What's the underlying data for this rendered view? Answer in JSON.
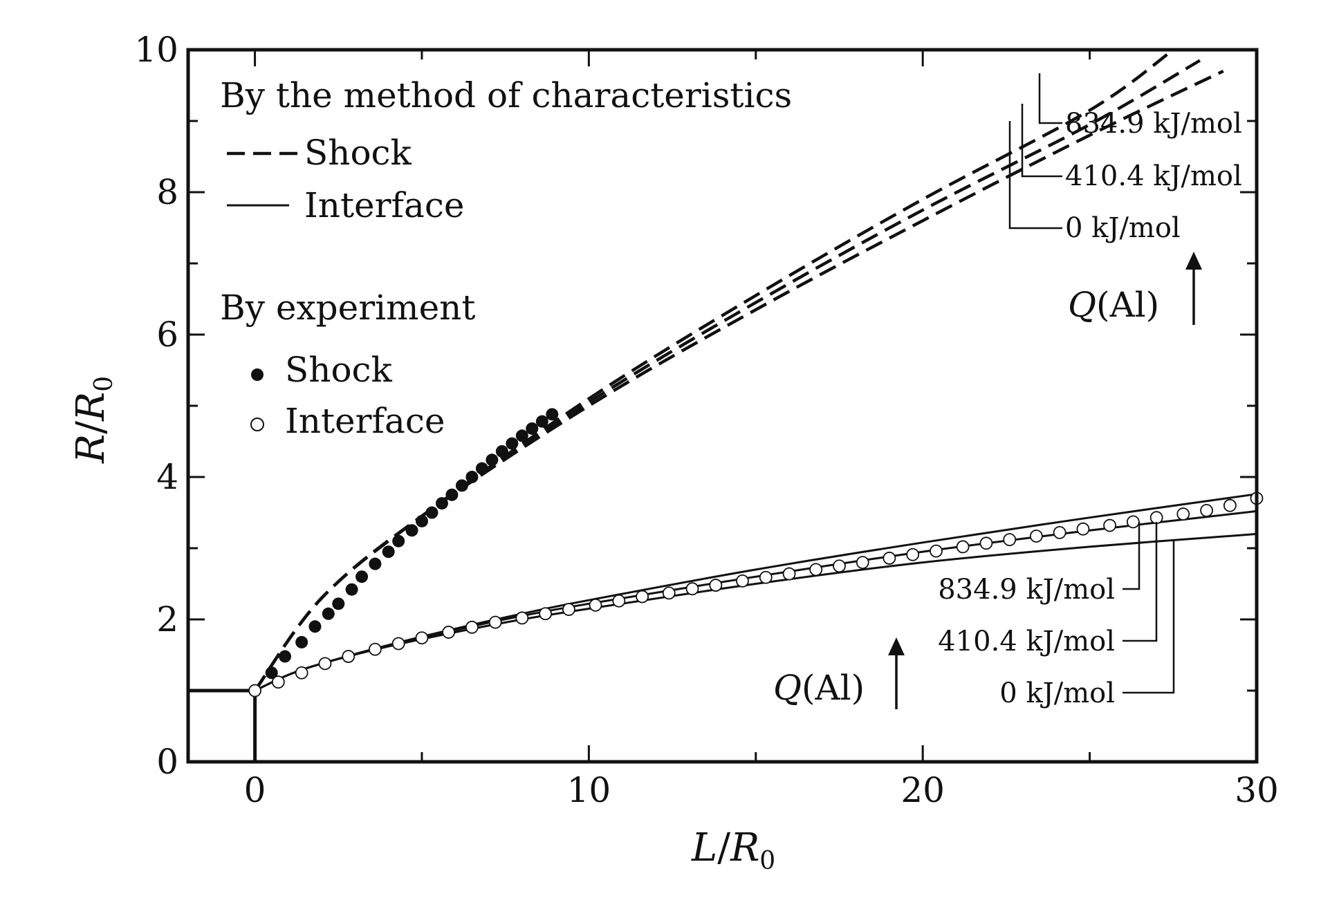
{
  "chart_data": {
    "type": "line",
    "xlabel": "L/R₀",
    "ylabel": "R/R₀",
    "xlim": [
      -2,
      30
    ],
    "ylim": [
      0,
      10
    ],
    "x_ticks": [
      0,
      10,
      20,
      30
    ],
    "y_ticks": [
      0,
      2,
      4,
      6,
      8,
      10
    ],
    "grid": false,
    "axis_labels": {
      "x_main": "L",
      "x_sub": "R",
      "x_subscript": "0",
      "y_main": "R",
      "y_sub": "R",
      "y_subscript": "0"
    },
    "legend": {
      "location": "top-left",
      "header_characteristics": "By  the method of characteristics",
      "shock_label": "Shock",
      "interface_label": "Interface",
      "header_experiment": "By experiment",
      "exp_shock_label": "Shock",
      "exp_interface_label": "Interface"
    },
    "initial_boundary": {
      "x": [
        -2,
        0,
        0
      ],
      "y": [
        1,
        1,
        0
      ]
    },
    "series_shock_characteristics": [
      {
        "q": "0 kJ/mol",
        "x": [
          0,
          2,
          5,
          10,
          15,
          20,
          25,
          29
        ],
        "y": [
          1,
          2.3,
          3.45,
          5.0,
          6.35,
          7.6,
          8.8,
          9.7
        ]
      },
      {
        "q": "410.4 kJ/mol",
        "x": [
          0,
          2,
          5,
          10,
          15,
          20,
          25,
          28.3
        ],
        "y": [
          1,
          2.3,
          3.45,
          5.05,
          6.45,
          7.75,
          8.95,
          9.85
        ]
      },
      {
        "q": "834.9 kJ/mol",
        "x": [
          0,
          2,
          5,
          10,
          15,
          20,
          25,
          27.5
        ],
        "y": [
          1,
          2.3,
          3.45,
          5.1,
          6.55,
          7.9,
          9.15,
          10.0
        ]
      }
    ],
    "series_interface_characteristics": [
      {
        "q": "0 kJ/mol",
        "x": [
          0,
          1,
          2,
          4,
          6,
          8,
          10,
          15,
          20,
          25,
          30
        ],
        "y": [
          1,
          1.22,
          1.38,
          1.62,
          1.82,
          2.0,
          2.15,
          2.5,
          2.8,
          3.02,
          3.2
        ]
      },
      {
        "q": "410.4 kJ/mol",
        "x": [
          0,
          1,
          2,
          4,
          6,
          8,
          10,
          15,
          20,
          25,
          30
        ],
        "y": [
          1,
          1.22,
          1.38,
          1.63,
          1.85,
          2.05,
          2.22,
          2.6,
          2.95,
          3.25,
          3.52
        ]
      },
      {
        "q": "834.9 kJ/mol",
        "x": [
          0,
          1,
          2,
          4,
          6,
          8,
          10,
          15,
          20,
          25,
          30
        ],
        "y": [
          1,
          1.22,
          1.38,
          1.64,
          1.87,
          2.08,
          2.27,
          2.7,
          3.08,
          3.43,
          3.76
        ]
      }
    ],
    "experiment_shock": {
      "x": [
        0,
        0.5,
        0.9,
        1.4,
        1.8,
        2.2,
        2.5,
        2.9,
        3.2,
        3.6,
        4.0,
        4.3,
        4.7,
        5.0,
        5.3,
        5.6,
        5.9,
        6.2,
        6.5,
        6.8,
        7.1,
        7.4,
        7.7,
        8.0,
        8.3,
        8.6,
        8.9
      ],
      "y": [
        1.0,
        1.25,
        1.48,
        1.68,
        1.9,
        2.08,
        2.22,
        2.42,
        2.6,
        2.78,
        2.95,
        3.1,
        3.25,
        3.38,
        3.5,
        3.63,
        3.75,
        3.88,
        4.0,
        4.12,
        4.24,
        4.36,
        4.47,
        4.58,
        4.68,
        4.78,
        4.88
      ]
    },
    "experiment_interface": {
      "x": [
        0,
        0.7,
        1.4,
        2.1,
        2.8,
        3.6,
        4.3,
        5.0,
        5.8,
        6.5,
        7.2,
        8.0,
        8.7,
        9.4,
        10.2,
        10.9,
        11.6,
        12.4,
        13.1,
        13.8,
        14.6,
        15.3,
        16.0,
        16.8,
        17.5,
        18.2,
        19.0,
        19.7,
        20.4,
        21.2,
        21.9,
        22.6,
        23.4,
        24.1,
        24.8,
        25.6,
        26.3,
        27.0,
        27.8,
        28.5,
        29.2,
        30.0
      ],
      "y": [
        1.0,
        1.12,
        1.25,
        1.38,
        1.48,
        1.58,
        1.66,
        1.74,
        1.82,
        1.89,
        1.96,
        2.02,
        2.08,
        2.14,
        2.2,
        2.26,
        2.32,
        2.37,
        2.43,
        2.48,
        2.54,
        2.59,
        2.64,
        2.7,
        2.75,
        2.8,
        2.86,
        2.91,
        2.96,
        3.02,
        3.07,
        3.12,
        3.17,
        3.22,
        3.27,
        3.32,
        3.37,
        3.43,
        3.48,
        3.53,
        3.6,
        3.7
      ]
    },
    "annotations": {
      "shock_labels": [
        "834.9 kJ/mol",
        "410.4 kJ/mol",
        "0 kJ/mol"
      ],
      "interface_labels": [
        "834.9 kJ/mol",
        "410.4 kJ/mol",
        "0 kJ/mol"
      ],
      "q_symbol": "Q",
      "q_species": "(Al)"
    }
  }
}
